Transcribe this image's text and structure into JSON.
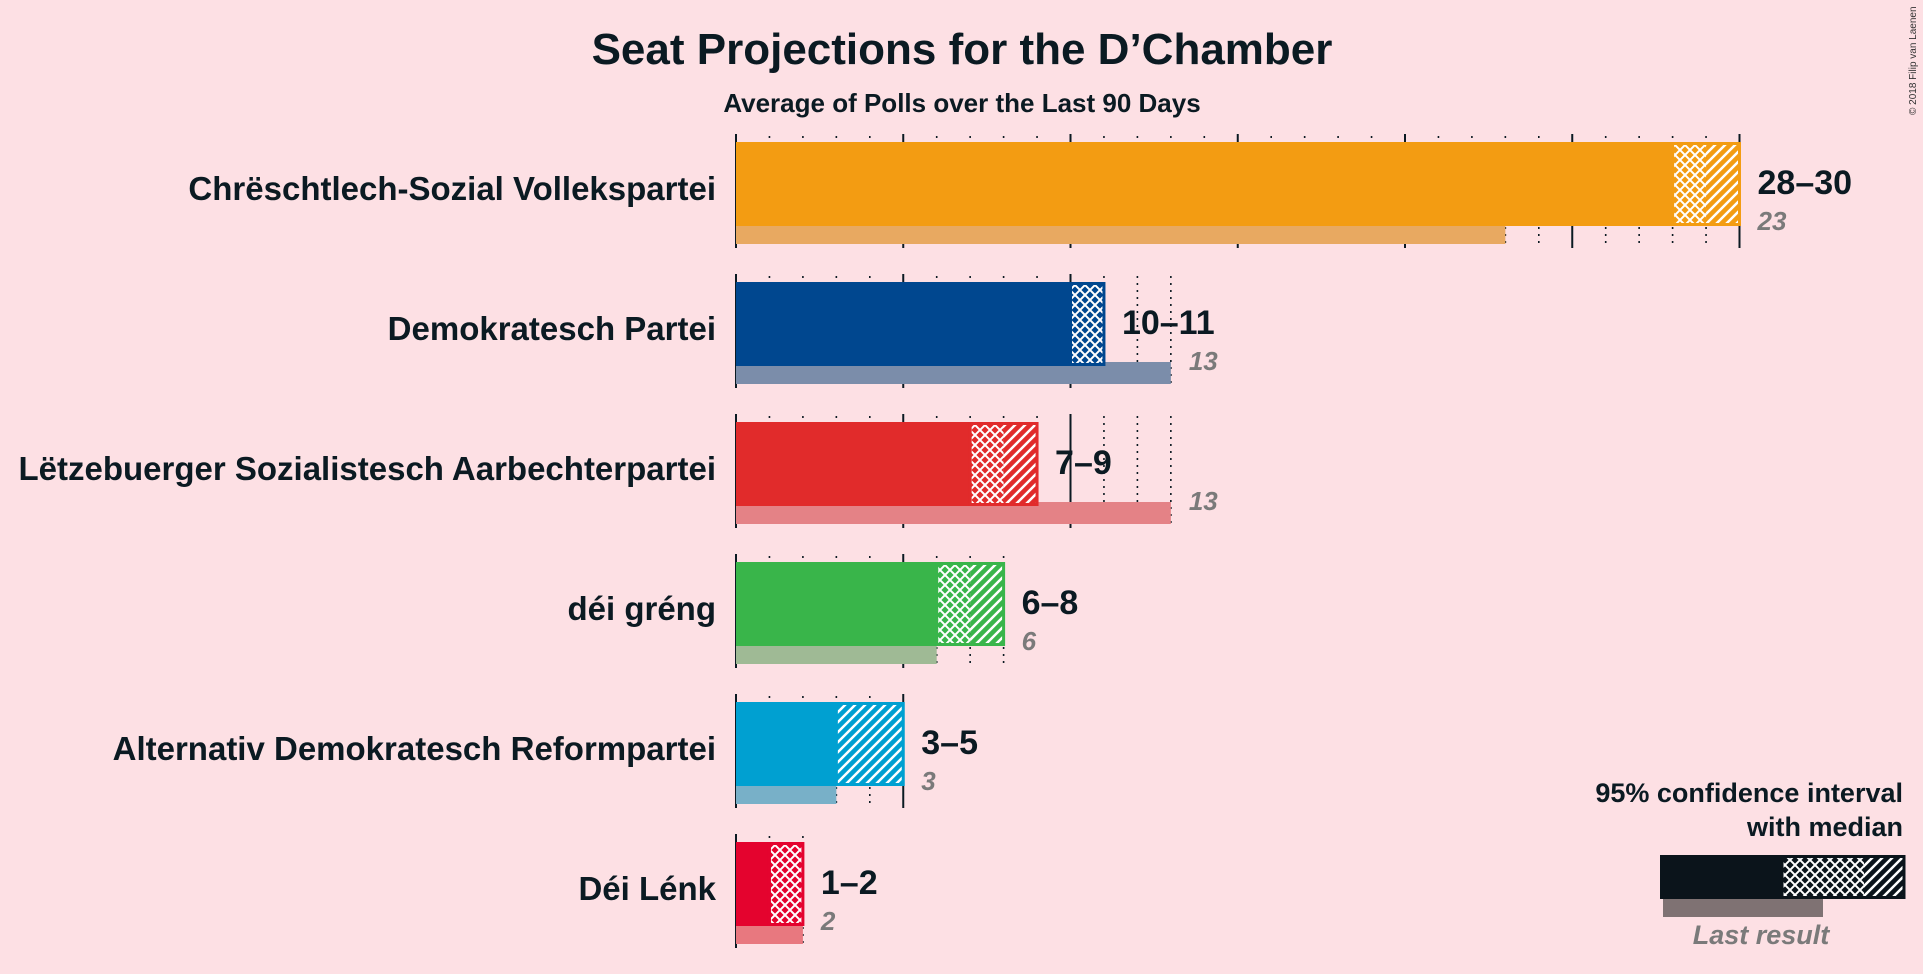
{
  "copyright": "© 2018 Filip van Laenen",
  "chart_data": {
    "type": "bar",
    "title": "Seat Projections for the D’Chamber",
    "subtitle": "Average of Polls over the Last 90 Days",
    "orientation": "horizontal",
    "xlim": [
      0,
      30
    ],
    "parties": [
      {
        "name": "Chrëschtlech-Sozial Vollekspartei",
        "color": "#f39c12",
        "last_color": "#e8a961",
        "low": 28,
        "median": 29,
        "high": 30,
        "last_result": 23,
        "range_label": "28–30",
        "last_label": "23"
      },
      {
        "name": "Demokratesch Partei",
        "color": "#00478f",
        "last_color": "#7b8daa",
        "low": 10,
        "median": 11,
        "high": 11,
        "last_result": 13,
        "range_label": "10–11",
        "last_label": "13"
      },
      {
        "name": "Lëtzebuerger Sozialistesch Aarbechterpartei",
        "color": "#e12b2b",
        "last_color": "#e48286",
        "low": 7,
        "median": 8,
        "high": 9,
        "last_result": 13,
        "range_label": "7–9",
        "last_label": "13"
      },
      {
        "name": "déi gréng",
        "color": "#39b54a",
        "last_color": "#9fba95",
        "low": 6,
        "median": 7,
        "high": 8,
        "last_result": 6,
        "range_label": "6–8",
        "last_label": "6"
      },
      {
        "name": "Alternativ Demokratesch Reformpartei",
        "color": "#00a0d1",
        "last_color": "#78b0c8",
        "low": 3,
        "median": 3,
        "high": 5,
        "last_result": 3,
        "range_label": "3–5",
        "last_label": "3"
      },
      {
        "name": "Déi Lénk",
        "color": "#e4032e",
        "last_color": "#e8787f",
        "low": 1,
        "median": 2,
        "high": 2,
        "last_result": 2,
        "range_label": "1–2",
        "last_label": "2"
      }
    ],
    "legend": {
      "line1": "95% confidence interval",
      "line2": "with median",
      "last_label": "Last result",
      "color": "#0b141b",
      "last_color": "#7f7273",
      "placement": "bottom-right"
    }
  }
}
